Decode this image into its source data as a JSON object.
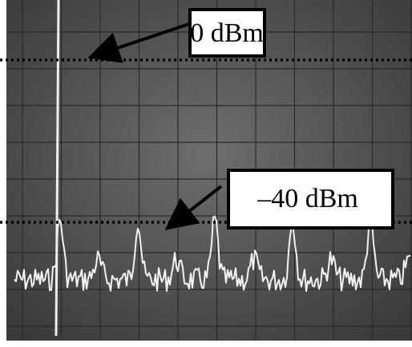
{
  "annotations": [
    {
      "label": "0 dBm"
    },
    {
      "label": "–40 dBm"
    }
  ]
}
